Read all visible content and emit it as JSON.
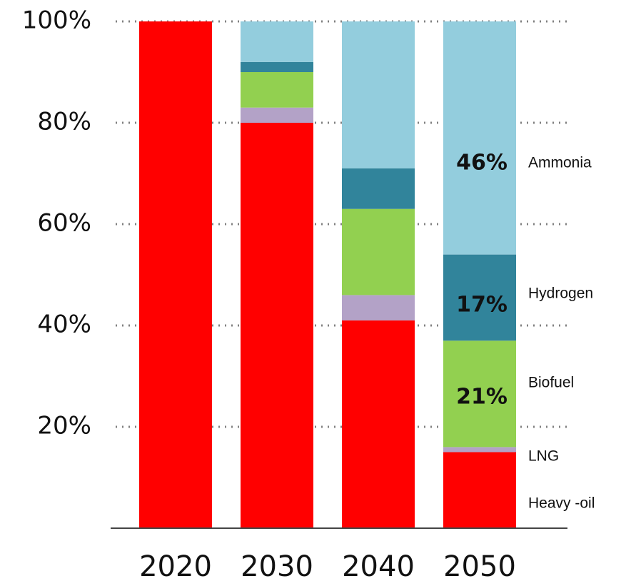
{
  "chart_data": {
    "type": "stacked_bar",
    "categories": [
      "2020",
      "2030",
      "2040",
      "2050"
    ],
    "series": [
      {
        "name": "Heavy -oil",
        "color": "#ff0000",
        "values": [
          100,
          80,
          41,
          15
        ]
      },
      {
        "name": "LNG",
        "color": "#b3a2c7",
        "values": [
          0,
          3,
          5,
          1
        ]
      },
      {
        "name": "Biofuel",
        "color": "#92d050",
        "values": [
          0,
          7,
          17,
          21
        ],
        "value_labels": [
          null,
          null,
          null,
          "21%"
        ]
      },
      {
        "name": "Hydrogen",
        "color": "#31849b",
        "values": [
          0,
          2,
          8,
          17
        ],
        "value_labels": [
          null,
          null,
          null,
          "17%"
        ]
      },
      {
        "name": "Ammonia",
        "color": "#93cddd",
        "values": [
          0,
          8,
          29,
          46
        ],
        "value_labels": [
          null,
          null,
          null,
          "46%"
        ]
      }
    ],
    "ylim": [
      0,
      100
    ],
    "yticks": [
      {
        "value": 20,
        "label": "20%"
      },
      {
        "value": 40,
        "label": "40%"
      },
      {
        "value": 60,
        "label": "60%"
      },
      {
        "value": 80,
        "label": "80%"
      },
      {
        "value": 100,
        "label": "100%"
      }
    ],
    "grid": true
  }
}
